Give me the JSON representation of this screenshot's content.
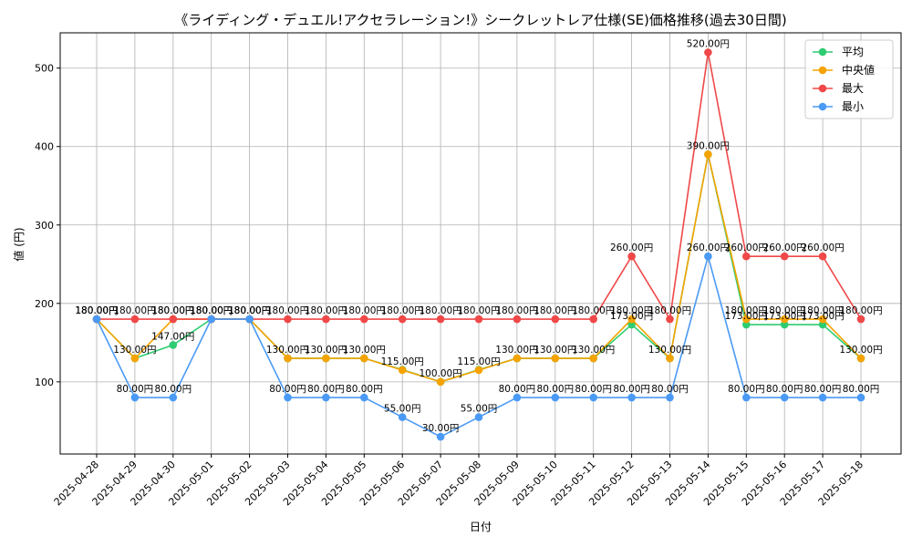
{
  "chart_data": {
    "type": "line",
    "title": "《ライディング・デュエル!アクセラレーション!》シークレットレア仕様(SE)価格推移(過去30日間)",
    "xlabel": "日付",
    "ylabel": "値 (円)",
    "ylim": [
      8,
      545
    ],
    "yticks": [
      100,
      200,
      300,
      400,
      500
    ],
    "grid": true,
    "legend_position": "top-right",
    "label_suffix": "円",
    "categories": [
      "2025-04-28",
      "2025-04-29",
      "2025-04-30",
      "2025-05-01",
      "2025-05-02",
      "2025-05-03",
      "2025-05-04",
      "2025-05-05",
      "2025-05-06",
      "2025-05-07",
      "2025-05-08",
      "2025-05-09",
      "2025-05-10",
      "2025-05-11",
      "2025-05-12",
      "2025-05-13",
      "2025-05-14",
      "2025-05-15",
      "2025-05-16",
      "2025-05-17",
      "2025-05-18"
    ],
    "series": [
      {
        "name": "平均",
        "color": "#2ecc71",
        "values": [
          180,
          130,
          147,
          180,
          180,
          130,
          130,
          130,
          115.5,
          100,
          115.5,
          130,
          130,
          130,
          173,
          130,
          390,
          173,
          173,
          173,
          130
        ],
        "labels": [
          false,
          false,
          true,
          false,
          false,
          false,
          false,
          false,
          false,
          false,
          false,
          false,
          false,
          false,
          true,
          false,
          false,
          true,
          true,
          true,
          false
        ]
      },
      {
        "name": "中央値",
        "color": "#f5a300",
        "values": [
          180,
          130,
          180,
          180,
          180,
          130,
          130,
          130,
          115,
          100,
          115,
          130,
          130,
          130,
          180,
          130,
          390,
          180,
          180,
          180,
          130
        ],
        "labels": [
          true,
          true,
          true,
          true,
          true,
          true,
          true,
          true,
          true,
          true,
          true,
          true,
          true,
          true,
          true,
          true,
          true,
          true,
          true,
          true,
          true
        ]
      },
      {
        "name": "最大",
        "color": "#f04848",
        "values": [
          180,
          180,
          180,
          180,
          180,
          180,
          180,
          180,
          180,
          180,
          180,
          180,
          180,
          180,
          260,
          180,
          520,
          260,
          260,
          260,
          180
        ],
        "labels": [
          true,
          true,
          true,
          true,
          true,
          true,
          true,
          true,
          true,
          true,
          true,
          true,
          true,
          true,
          true,
          true,
          true,
          true,
          true,
          true,
          true
        ]
      },
      {
        "name": "最小",
        "color": "#4a9af5",
        "values": [
          180,
          80,
          80,
          180,
          180,
          80,
          80,
          80,
          55,
          30,
          55,
          80,
          80,
          80,
          80,
          80,
          260,
          80,
          80,
          80,
          80
        ],
        "labels": [
          true,
          true,
          true,
          true,
          true,
          true,
          true,
          true,
          true,
          true,
          true,
          true,
          true,
          true,
          true,
          true,
          true,
          true,
          true,
          true,
          true
        ]
      }
    ]
  }
}
